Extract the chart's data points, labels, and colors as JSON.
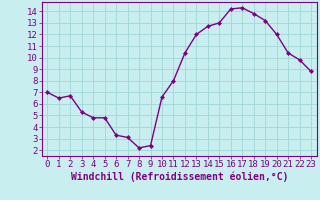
{
  "x": [
    0,
    1,
    2,
    3,
    4,
    5,
    6,
    7,
    8,
    9,
    10,
    11,
    12,
    13,
    14,
    15,
    16,
    17,
    18,
    19,
    20,
    21,
    22,
    23
  ],
  "y": [
    7.0,
    6.5,
    6.7,
    5.3,
    4.8,
    4.8,
    3.3,
    3.1,
    2.2,
    2.4,
    6.6,
    8.0,
    10.4,
    12.0,
    12.7,
    13.0,
    14.2,
    14.3,
    13.8,
    13.2,
    12.0,
    10.4,
    9.8,
    8.8
  ],
  "line_color": "#800080",
  "marker": "D",
  "marker_size": 2,
  "bg_color": "#c8eef0",
  "grid_color": "#a0d8d8",
  "xlabel": "Windchill (Refroidissement éolien,°C)",
  "xlim": [
    -0.5,
    23.5
  ],
  "ylim": [
    1.5,
    14.8
  ],
  "yticks": [
    2,
    3,
    4,
    5,
    6,
    7,
    8,
    9,
    10,
    11,
    12,
    13,
    14
  ],
  "xticks": [
    0,
    1,
    2,
    3,
    4,
    5,
    6,
    7,
    8,
    9,
    10,
    11,
    12,
    13,
    14,
    15,
    16,
    17,
    18,
    19,
    20,
    21,
    22,
    23
  ],
  "axis_color": "#800080",
  "font_size": 6.5,
  "xlabel_fontsize": 7,
  "linewidth": 1.0
}
